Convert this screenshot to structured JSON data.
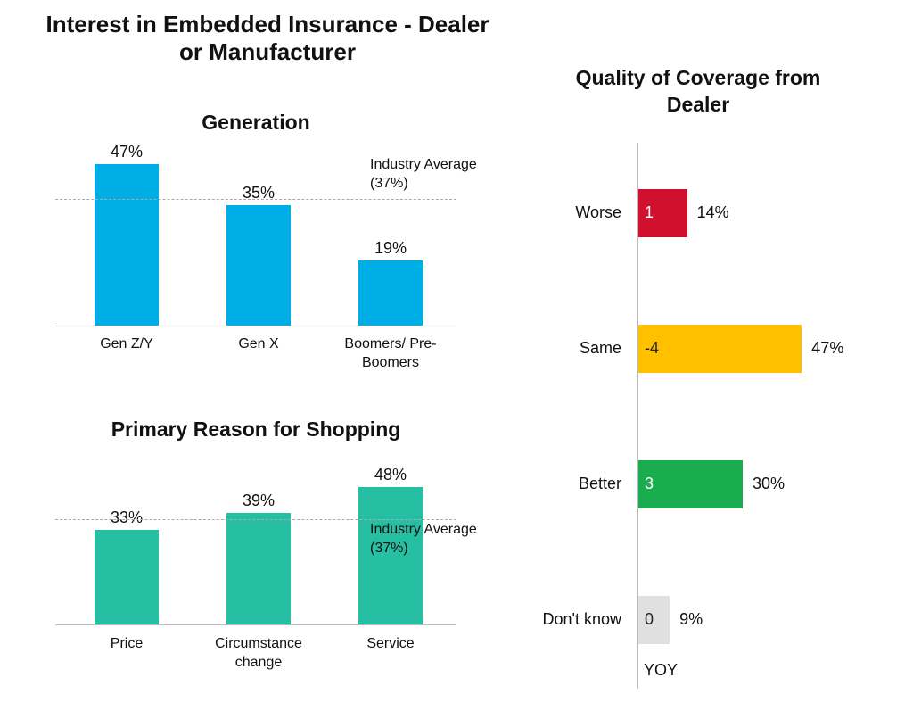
{
  "title": "Interest in Embedded Insurance - Dealer or Manufacturer",
  "chart_data": [
    {
      "type": "bar",
      "title": "Generation",
      "categories": [
        "Gen Z/Y",
        "Gen X",
        "Boomers/ Pre-Boomers"
      ],
      "values": [
        47,
        35,
        19
      ],
      "value_labels": [
        "47%",
        "35%",
        "19%"
      ],
      "color": "#00aee6",
      "reference_line": {
        "value": 37,
        "label": "Industry Average (37%)"
      }
    },
    {
      "type": "bar",
      "title": "Primary Reason for Shopping",
      "categories": [
        "Price",
        "Circumstance change",
        "Service"
      ],
      "values": [
        33,
        39,
        48
      ],
      "value_labels": [
        "33%",
        "39%",
        "48%"
      ],
      "color": "#26bfa3",
      "reference_line": {
        "value": 37,
        "label": "Industry Average (37%)"
      }
    },
    {
      "type": "barh",
      "title": "Quality of Coverage from Dealer",
      "categories": [
        "Worse",
        "Same",
        "Better",
        "Don't know"
      ],
      "values": [
        14,
        47,
        30,
        9
      ],
      "value_labels": [
        "14%",
        "47%",
        "30%",
        "9%"
      ],
      "colors": [
        "#d0102c",
        "#ffc000",
        "#1aad4f",
        "#e0e0e0"
      ],
      "yoy": {
        "label": "YOY",
        "values": [
          1,
          -4,
          3,
          0
        ]
      }
    }
  ]
}
